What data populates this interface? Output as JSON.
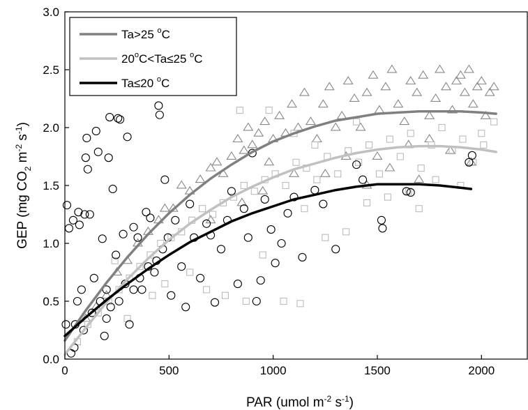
{
  "chart_data": {
    "type": "scatter",
    "xlabel": {
      "main": "PAR (umol m",
      "sup1": "-2",
      "mid": " s",
      "sup2": "-1",
      "end": ")"
    },
    "ylabel": {
      "main": "GEP (mg CO",
      "sub": "2",
      "mid1": " m",
      "sup1": "-2",
      "mid2": " s",
      "sup2": "-1",
      "end": ")"
    },
    "xlim": [
      0,
      2220
    ],
    "ylim": [
      0,
      3.0
    ],
    "xticks": [
      0,
      500,
      1000,
      1500,
      2000
    ],
    "xtick_labels": [
      "0",
      "500",
      "1000",
      "1500",
      "2000"
    ],
    "yticks": [
      0,
      0.5,
      1.0,
      1.5,
      2.0,
      2.5,
      3.0
    ],
    "ytick_labels": [
      "0.0",
      "0.5",
      "1.0",
      "1.5",
      "2.0",
      "2.5",
      "3.0"
    ],
    "legend": {
      "placement": "top-left",
      "entries": [
        {
          "parts": [
            "Ta>25 ",
            "o",
            "C"
          ],
          "color": "#808080"
        },
        {
          "parts": [
            "20",
            "o",
            "C<Ta≤25 ",
            "o",
            "C"
          ],
          "color": "#c0c0c0"
        },
        {
          "parts": [
            "Ta≤20 ",
            "o",
            "C"
          ],
          "color": "#000000"
        }
      ]
    },
    "series": [
      {
        "group": "Ta>25",
        "marker": "triangle",
        "marker_color": "#888888",
        "line_color": "#808080",
        "points": [
          [
            100,
            0.35
          ],
          [
            150,
            0.45
          ],
          [
            200,
            0.55
          ],
          [
            250,
            0.75
          ],
          [
            300,
            0.85
          ],
          [
            350,
            1.0
          ],
          [
            400,
            1.1
          ],
          [
            450,
            1.2
          ],
          [
            480,
            1.3
          ],
          [
            520,
            1.3
          ],
          [
            560,
            1.5
          ],
          [
            600,
            1.45
          ],
          [
            650,
            1.55
          ],
          [
            700,
            1.65
          ],
          [
            730,
            1.7
          ],
          [
            760,
            1.6
          ],
          [
            800,
            1.75
          ],
          [
            830,
            1.9
          ],
          [
            860,
            1.8
          ],
          [
            880,
            2.0
          ],
          [
            900,
            1.85
          ],
          [
            930,
            1.95
          ],
          [
            960,
            2.05
          ],
          [
            980,
            1.7
          ],
          [
            1000,
            1.9
          ],
          [
            1030,
            2.1
          ],
          [
            1060,
            1.95
          ],
          [
            1090,
            2.2
          ],
          [
            1120,
            2.0
          ],
          [
            1150,
            2.3
          ],
          [
            1180,
            2.05
          ],
          [
            1210,
            1.9
          ],
          [
            1240,
            2.2
          ],
          [
            1270,
            2.35
          ],
          [
            1300,
            2.0
          ],
          [
            1330,
            2.1
          ],
          [
            1360,
            2.4
          ],
          [
            1390,
            2.25
          ],
          [
            1420,
            2.0
          ],
          [
            1450,
            2.3
          ],
          [
            1480,
            2.45
          ],
          [
            1510,
            2.15
          ],
          [
            1540,
            2.35
          ],
          [
            1570,
            2.5
          ],
          [
            1600,
            2.2
          ],
          [
            1630,
            2.05
          ],
          [
            1660,
            2.4
          ],
          [
            1690,
            2.3
          ],
          [
            1720,
            2.45
          ],
          [
            1750,
            2.1
          ],
          [
            1780,
            2.25
          ],
          [
            1800,
            2.5
          ],
          [
            1830,
            2.35
          ],
          [
            1860,
            2.15
          ],
          [
            1880,
            2.4
          ],
          [
            1900,
            2.45
          ],
          [
            1920,
            2.3
          ],
          [
            1940,
            2.5
          ],
          [
            1960,
            2.2
          ],
          [
            1980,
            2.35
          ],
          [
            2000,
            2.4
          ],
          [
            2020,
            2.1
          ],
          [
            2040,
            2.3
          ],
          [
            2060,
            2.35
          ],
          [
            1500,
            1.75
          ],
          [
            1560,
            1.65
          ],
          [
            1650,
            1.85
          ],
          [
            1700,
            1.55
          ],
          [
            1350,
            1.75
          ],
          [
            1250,
            1.6
          ],
          [
            1100,
            1.6
          ],
          [
            950,
            1.45
          ],
          [
            850,
            1.35
          ],
          [
            700,
            1.2
          ],
          [
            1450,
            1.5
          ],
          [
            1750,
            1.9
          ],
          [
            1850,
            1.8
          ],
          [
            1950,
            1.7
          ]
        ],
        "fit": [
          [
            0,
            0.16
          ],
          [
            100,
            0.42
          ],
          [
            200,
            0.66
          ],
          [
            300,
            0.88
          ],
          [
            400,
            1.08
          ],
          [
            500,
            1.26
          ],
          [
            600,
            1.42
          ],
          [
            700,
            1.56
          ],
          [
            800,
            1.68
          ],
          [
            900,
            1.79
          ],
          [
            1000,
            1.88
          ],
          [
            1100,
            1.95
          ],
          [
            1200,
            2.01
          ],
          [
            1300,
            2.06
          ],
          [
            1400,
            2.09
          ],
          [
            1500,
            2.12
          ],
          [
            1600,
            2.13
          ],
          [
            1700,
            2.14
          ],
          [
            1800,
            2.14
          ],
          [
            1900,
            2.14
          ],
          [
            2000,
            2.13
          ],
          [
            2070,
            2.12
          ]
        ]
      },
      {
        "group": "20<Ta<=25",
        "marker": "square",
        "marker_color": "#bbbbbb",
        "line_color": "#c0c0c0",
        "points": [
          [
            60,
            0.15
          ],
          [
            110,
            0.3
          ],
          [
            160,
            0.4
          ],
          [
            210,
            0.5
          ],
          [
            260,
            0.6
          ],
          [
            310,
            0.7
          ],
          [
            360,
            0.8
          ],
          [
            410,
            0.9
          ],
          [
            460,
            1.0
          ],
          [
            510,
            1.05
          ],
          [
            560,
            1.1
          ],
          [
            610,
            1.2
          ],
          [
            660,
            1.3
          ],
          [
            710,
            1.25
          ],
          [
            760,
            1.35
          ],
          [
            810,
            1.4
          ],
          [
            860,
            1.5
          ],
          [
            910,
            1.45
          ],
          [
            960,
            1.55
          ],
          [
            1010,
            1.6
          ],
          [
            1060,
            1.5
          ],
          [
            1110,
            1.7
          ],
          [
            1160,
            1.65
          ],
          [
            1210,
            1.55
          ],
          [
            1260,
            1.75
          ],
          [
            1310,
            1.6
          ],
          [
            1360,
            1.8
          ],
          [
            1410,
            1.7
          ],
          [
            1460,
            1.85
          ],
          [
            1510,
            1.6
          ],
          [
            1560,
            1.9
          ],
          [
            1610,
            1.75
          ],
          [
            1660,
            1.95
          ],
          [
            1710,
            1.65
          ],
          [
            1760,
            1.85
          ],
          [
            1810,
            2.0
          ],
          [
            1860,
            1.8
          ],
          [
            1910,
            1.9
          ],
          [
            1960,
            1.7
          ],
          [
            2010,
            1.85
          ],
          [
            2060,
            2.05
          ],
          [
            770,
            0.55
          ],
          [
            870,
            0.5
          ],
          [
            1050,
            0.5
          ],
          [
            1130,
            0.48
          ],
          [
            1250,
            1.05
          ],
          [
            1350,
            1.1
          ],
          [
            600,
            0.75
          ],
          [
            680,
            0.6
          ],
          [
            950,
            0.9
          ],
          [
            1450,
            1.35
          ],
          [
            1550,
            1.4
          ],
          [
            1650,
            1.45
          ],
          [
            300,
            0.35
          ],
          [
            420,
            0.55
          ],
          [
            240,
            0.85
          ],
          [
            480,
            0.65
          ],
          [
            840,
            2.15
          ],
          [
            980,
            2.15
          ],
          [
            1150,
            1.3
          ],
          [
            1700,
            1.3
          ],
          [
            1780,
            1.55
          ],
          [
            1900,
            1.5
          ],
          [
            2000,
            1.95
          ],
          [
            1100,
            1.95
          ],
          [
            1200,
            1.85
          ],
          [
            1400,
            2.05
          ]
        ],
        "fit": [
          [
            0,
            0.04
          ],
          [
            100,
            0.27
          ],
          [
            200,
            0.49
          ],
          [
            300,
            0.69
          ],
          [
            400,
            0.87
          ],
          [
            500,
            1.03
          ],
          [
            600,
            1.17
          ],
          [
            700,
            1.29
          ],
          [
            800,
            1.4
          ],
          [
            900,
            1.49
          ],
          [
            1000,
            1.57
          ],
          [
            1100,
            1.64
          ],
          [
            1200,
            1.69
          ],
          [
            1300,
            1.74
          ],
          [
            1400,
            1.78
          ],
          [
            1500,
            1.81
          ],
          [
            1600,
            1.83
          ],
          [
            1700,
            1.84
          ],
          [
            1800,
            1.84
          ],
          [
            1900,
            1.83
          ],
          [
            2000,
            1.81
          ],
          [
            2070,
            1.79
          ]
        ]
      },
      {
        "group": "Ta<=20",
        "marker": "circle",
        "marker_color": "#000000",
        "line_color": "#000000",
        "points": [
          [
            5,
            0.3
          ],
          [
            10,
            1.33
          ],
          [
            20,
            1.13
          ],
          [
            30,
            0.05
          ],
          [
            40,
            1.2
          ],
          [
            45,
            0.1
          ],
          [
            50,
            0.3
          ],
          [
            60,
            0.5
          ],
          [
            65,
            1.27
          ],
          [
            70,
            1.16
          ],
          [
            80,
            0.6
          ],
          [
            90,
            0.25
          ],
          [
            95,
            1.25
          ],
          [
            100,
            1.74
          ],
          [
            105,
            1.91
          ],
          [
            110,
            1.64
          ],
          [
            120,
            1.25
          ],
          [
            130,
            0.4
          ],
          [
            140,
            0.7
          ],
          [
            150,
            1.97
          ],
          [
            160,
            1.79
          ],
          [
            170,
            0.5
          ],
          [
            180,
            1.04
          ],
          [
            190,
            0.2
          ],
          [
            200,
            0.6
          ],
          [
            210,
            1.74
          ],
          [
            215,
            2.09
          ],
          [
            230,
            1.47
          ],
          [
            245,
            0.9
          ],
          [
            255,
            2.08
          ],
          [
            265,
            2.07
          ],
          [
            280,
            1.08
          ],
          [
            290,
            0.65
          ],
          [
            300,
            1.92
          ],
          [
            310,
            0.3
          ],
          [
            330,
            1.14
          ],
          [
            350,
            1.05
          ],
          [
            370,
            0.6
          ],
          [
            390,
            1.27
          ],
          [
            410,
            1.22
          ],
          [
            430,
            0.75
          ],
          [
            450,
            2.19
          ],
          [
            455,
            2.11
          ],
          [
            470,
            0.95
          ],
          [
            480,
            1.55
          ],
          [
            495,
            1.05
          ],
          [
            510,
            0.55
          ],
          [
            530,
            1.2
          ],
          [
            560,
            0.8
          ],
          [
            580,
            0.45
          ],
          [
            600,
            1.34
          ],
          [
            620,
            1.05
          ],
          [
            650,
            0.7
          ],
          [
            680,
            1.17
          ],
          [
            700,
            1.07
          ],
          [
            720,
            0.49
          ],
          [
            750,
            0.95
          ],
          [
            780,
            1.2
          ],
          [
            800,
            1.45
          ],
          [
            830,
            0.65
          ],
          [
            860,
            1.3
          ],
          [
            880,
            1.05
          ],
          [
            900,
            1.78
          ],
          [
            920,
            0.5
          ],
          [
            940,
            0.68
          ],
          [
            960,
            1.38
          ],
          [
            990,
            1.12
          ],
          [
            1010,
            0.83
          ],
          [
            1040,
            1.0
          ],
          [
            1070,
            1.26
          ],
          [
            1100,
            1.4
          ],
          [
            1140,
            0.88
          ],
          [
            1200,
            1.46
          ],
          [
            1240,
            1.34
          ],
          [
            1300,
            0.95
          ],
          [
            1400,
            1.68
          ],
          [
            1430,
            1.55
          ],
          [
            1520,
            1.2
          ],
          [
            1525,
            1.13
          ],
          [
            1640,
            1.45
          ],
          [
            1660,
            1.44
          ],
          [
            1940,
            1.7
          ],
          [
            1955,
            1.76
          ],
          [
            200,
            0.35
          ],
          [
            220,
            0.45
          ],
          [
            260,
            0.5
          ],
          [
            330,
            0.6
          ],
          [
            360,
            0.7
          ],
          [
            400,
            0.8
          ],
          [
            440,
            0.85
          ]
        ],
        "fit": [
          [
            0,
            0.2
          ],
          [
            100,
            0.36
          ],
          [
            200,
            0.51
          ],
          [
            300,
            0.65
          ],
          [
            400,
            0.78
          ],
          [
            500,
            0.9
          ],
          [
            600,
            1.01
          ],
          [
            700,
            1.1
          ],
          [
            800,
            1.19
          ],
          [
            900,
            1.26
          ],
          [
            1000,
            1.32
          ],
          [
            1100,
            1.38
          ],
          [
            1200,
            1.42
          ],
          [
            1300,
            1.46
          ],
          [
            1400,
            1.49
          ],
          [
            1500,
            1.51
          ],
          [
            1600,
            1.51
          ],
          [
            1700,
            1.51
          ],
          [
            1800,
            1.5
          ],
          [
            1900,
            1.48
          ],
          [
            1950,
            1.47
          ]
        ]
      }
    ]
  }
}
